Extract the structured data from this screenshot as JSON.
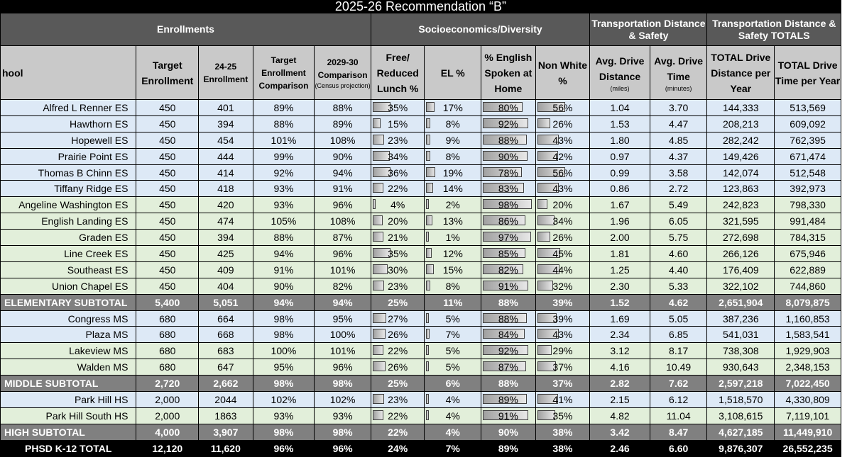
{
  "title": "2025-26 Recommendation “B”",
  "groups": {
    "enrollments": "Enrollments",
    "socio": "Socioeconomics/Diversity",
    "transport": "Transportation Distance & Safety",
    "totals": "Transportation Distance & Safety TOTALS"
  },
  "headers": {
    "school": "hool",
    "target": "Target Enrollment",
    "enr2425": "24-25 Enrollment",
    "target_cmp": "Target Enrollment Comparison",
    "cmp2930": "2029-30 Comparison",
    "cmp2930_note": "(Census projection)",
    "frl": "Free/ Reduced Lunch %",
    "el": "EL %",
    "eng": "% English Spoken at Home",
    "nonwhite": "Non White %",
    "dist": "Avg. Drive Distance",
    "dist_note": "(miles)",
    "time": "Avg. Drive Time",
    "time_note": "(minutes)",
    "tot_dist": "TOTAL Drive Distance per Year",
    "tot_time": "TOTAL Drive Time per Year"
  },
  "rows": [
    {
      "style": "blue",
      "school": "Alfred L Renner ES",
      "target": "450",
      "enr": "401",
      "tcmp": "89%",
      "cmp": "88%",
      "frl": "35%",
      "el": "17%",
      "eng": "80%",
      "nw": "56%",
      "dist": "1.04",
      "time": "3.70",
      "tdist": "144,333",
      "ttime": "513,569"
    },
    {
      "style": "blue",
      "school": "Hawthorn ES",
      "target": "450",
      "enr": "394",
      "tcmp": "88%",
      "cmp": "89%",
      "frl": "15%",
      "el": "8%",
      "eng": "92%",
      "nw": "26%",
      "dist": "1.53",
      "time": "4.47",
      "tdist": "208,213",
      "ttime": "609,092"
    },
    {
      "style": "blue",
      "school": "Hopewell ES",
      "target": "450",
      "enr": "454",
      "tcmp": "101%",
      "cmp": "108%",
      "frl": "23%",
      "el": "9%",
      "eng": "88%",
      "nw": "43%",
      "dist": "1.80",
      "time": "4.85",
      "tdist": "282,242",
      "ttime": "762,395"
    },
    {
      "style": "blue",
      "school": "Prairie Point ES",
      "target": "450",
      "enr": "444",
      "tcmp": "99%",
      "cmp": "90%",
      "frl": "34%",
      "el": "8%",
      "eng": "90%",
      "nw": "42%",
      "dist": "0.97",
      "time": "4.37",
      "tdist": "149,426",
      "ttime": "671,474"
    },
    {
      "style": "blue",
      "school": "Thomas B Chinn ES",
      "target": "450",
      "enr": "414",
      "tcmp": "92%",
      "cmp": "94%",
      "frl": "36%",
      "el": "19%",
      "eng": "78%",
      "nw": "56%",
      "dist": "0.99",
      "time": "3.58",
      "tdist": "142,074",
      "ttime": "512,548"
    },
    {
      "style": "blue",
      "school": "Tiffany Ridge ES",
      "target": "450",
      "enr": "418",
      "tcmp": "93%",
      "cmp": "91%",
      "frl": "22%",
      "el": "14%",
      "eng": "83%",
      "nw": "43%",
      "dist": "0.86",
      "time": "2.72",
      "tdist": "123,863",
      "ttime": "392,973"
    },
    {
      "style": "green",
      "school": "Angeline Washington ES",
      "target": "450",
      "enr": "420",
      "tcmp": "93%",
      "cmp": "96%",
      "frl": "4%",
      "el": "2%",
      "eng": "98%",
      "nw": "20%",
      "dist": "1.67",
      "time": "5.49",
      "tdist": "242,823",
      "ttime": "798,330"
    },
    {
      "style": "green",
      "school": "English Landing ES",
      "target": "450",
      "enr": "474",
      "tcmp": "105%",
      "cmp": "108%",
      "frl": "20%",
      "el": "13%",
      "eng": "86%",
      "nw": "34%",
      "dist": "1.96",
      "time": "6.05",
      "tdist": "321,595",
      "ttime": "991,484"
    },
    {
      "style": "green",
      "school": "Graden ES",
      "target": "450",
      "enr": "394",
      "tcmp": "88%",
      "cmp": "87%",
      "frl": "21%",
      "el": "1%",
      "eng": "97%",
      "nw": "26%",
      "dist": "2.00",
      "time": "5.75",
      "tdist": "272,698",
      "ttime": "784,315"
    },
    {
      "style": "green",
      "school": "Line Creek ES",
      "target": "450",
      "enr": "425",
      "tcmp": "94%",
      "cmp": "96%",
      "frl": "35%",
      "el": "12%",
      "eng": "85%",
      "nw": "45%",
      "dist": "1.81",
      "time": "4.60",
      "tdist": "266,126",
      "ttime": "675,946"
    },
    {
      "style": "green",
      "school": "Southeast ES",
      "target": "450",
      "enr": "409",
      "tcmp": "91%",
      "cmp": "101%",
      "frl": "30%",
      "el": "15%",
      "eng": "82%",
      "nw": "44%",
      "dist": "1.25",
      "time": "4.40",
      "tdist": "176,409",
      "ttime": "622,889"
    },
    {
      "style": "green",
      "school": "Union Chapel ES",
      "target": "450",
      "enr": "404",
      "tcmp": "90%",
      "cmp": "82%",
      "frl": "23%",
      "el": "8%",
      "eng": "91%",
      "nw": "32%",
      "dist": "2.30",
      "time": "5.33",
      "tdist": "322,102",
      "ttime": "744,860"
    },
    {
      "style": "sub",
      "school": "ELEMENTARY SUBTOTAL",
      "target": "5,400",
      "enr": "5,051",
      "tcmp": "94%",
      "cmp": "94%",
      "frl": "25%",
      "el": "11%",
      "eng": "88%",
      "nw": "39%",
      "dist": "1.52",
      "time": "4.62",
      "tdist": "2,651,904",
      "ttime": "8,079,875"
    },
    {
      "style": "blue",
      "school": "Congress MS",
      "target": "680",
      "enr": "664",
      "tcmp": "98%",
      "cmp": "95%",
      "frl": "27%",
      "el": "5%",
      "eng": "88%",
      "nw": "39%",
      "dist": "1.69",
      "time": "5.05",
      "tdist": "387,236",
      "ttime": "1,160,853"
    },
    {
      "style": "blue",
      "school": "Plaza MS",
      "target": "680",
      "enr": "668",
      "tcmp": "98%",
      "cmp": "100%",
      "frl": "26%",
      "el": "7%",
      "eng": "84%",
      "nw": "43%",
      "dist": "2.34",
      "time": "6.85",
      "tdist": "541,031",
      "ttime": "1,583,541"
    },
    {
      "style": "green",
      "school": "Lakeview MS",
      "target": "680",
      "enr": "683",
      "tcmp": "100%",
      "cmp": "101%",
      "frl": "22%",
      "el": "5%",
      "eng": "92%",
      "nw": "29%",
      "dist": "3.12",
      "time": "8.17",
      "tdist": "738,308",
      "ttime": "1,929,903"
    },
    {
      "style": "green",
      "school": "Walden MS",
      "target": "680",
      "enr": "647",
      "tcmp": "95%",
      "cmp": "96%",
      "frl": "26%",
      "el": "5%",
      "eng": "87%",
      "nw": "37%",
      "dist": "4.16",
      "time": "10.49",
      "tdist": "930,643",
      "ttime": "2,348,153"
    },
    {
      "style": "sub",
      "school": "MIDDLE SUBTOTAL",
      "target": "2,720",
      "enr": "2,662",
      "tcmp": "98%",
      "cmp": "98%",
      "frl": "25%",
      "el": "6%",
      "eng": "88%",
      "nw": "37%",
      "dist": "2.82",
      "time": "7.62",
      "tdist": "2,597,218",
      "ttime": "7,022,450"
    },
    {
      "style": "blue",
      "school": "Park Hill HS",
      "target": "2,000",
      "enr": "2044",
      "tcmp": "102%",
      "cmp": "102%",
      "frl": "23%",
      "el": "4%",
      "eng": "89%",
      "nw": "41%",
      "dist": "2.15",
      "time": "6.12",
      "tdist": "1,518,570",
      "ttime": "4,330,809"
    },
    {
      "style": "green",
      "school": "Park Hill South HS",
      "target": "2,000",
      "enr": "1863",
      "tcmp": "93%",
      "cmp": "93%",
      "frl": "22%",
      "el": "4%",
      "eng": "91%",
      "nw": "35%",
      "dist": "4.82",
      "time": "11.04",
      "tdist": "3,108,615",
      "ttime": "7,119,101"
    },
    {
      "style": "sub",
      "school": "HIGH SUBTOTAL",
      "target": "4,000",
      "enr": "3,907",
      "tcmp": "98%",
      "cmp": "98%",
      "frl": "22%",
      "el": "4%",
      "eng": "90%",
      "nw": "38%",
      "dist": "3.42",
      "time": "8.47",
      "tdist": "4,627,185",
      "ttime": "11,449,910"
    },
    {
      "style": "total",
      "school": "PHSD K-12 TOTAL",
      "target": "12,120",
      "enr": "11,620",
      "tcmp": "96%",
      "cmp": "96%",
      "frl": "24%",
      "el": "7%",
      "eng": "89%",
      "nw": "38%",
      "dist": "2.46",
      "time": "6.60",
      "tdist": "9,876,307",
      "ttime": "26,552,235"
    }
  ]
}
